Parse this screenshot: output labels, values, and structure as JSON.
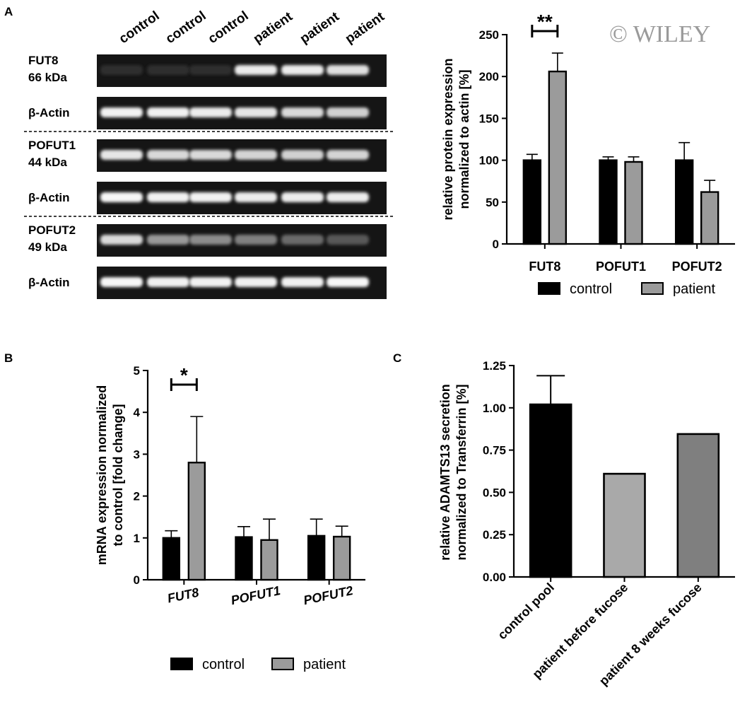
{
  "watermark": "© WILEY",
  "panels": {
    "a": "A",
    "b": "B",
    "c": "C"
  },
  "blot": {
    "lanes": [
      "control",
      "control",
      "control",
      "patient",
      "patient",
      "patient"
    ],
    "rows": [
      {
        "name": "FUT8",
        "size": "66 kDa"
      },
      {
        "name": "β-Actin",
        "size": ""
      },
      {
        "name": "POFUT1",
        "size": "44 kDa"
      },
      {
        "name": "β-Actin",
        "size": ""
      },
      {
        "name": "POFUT2",
        "size": "49 kDa"
      },
      {
        "name": "β-Actin",
        "size": ""
      }
    ],
    "band_intensity": [
      [
        0.18,
        0.18,
        0.18,
        0.92,
        0.92,
        0.88
      ],
      [
        0.95,
        0.95,
        0.93,
        0.9,
        0.85,
        0.82
      ],
      [
        0.9,
        0.85,
        0.85,
        0.83,
        0.82,
        0.83
      ],
      [
        0.97,
        0.95,
        0.95,
        0.93,
        0.93,
        0.93
      ],
      [
        0.85,
        0.6,
        0.55,
        0.5,
        0.42,
        0.35
      ],
      [
        0.97,
        0.95,
        0.95,
        0.95,
        0.95,
        0.97
      ]
    ]
  },
  "chart_data": [
    {
      "id": "A",
      "type": "bar",
      "categories": [
        "FUT8",
        "POFUT1",
        "POFUT2"
      ],
      "series": [
        {
          "name": "control",
          "values": [
            100,
            100,
            100
          ],
          "errors": [
            7,
            4,
            21
          ],
          "color": "#000000"
        },
        {
          "name": "patient",
          "values": [
            206,
            98,
            62
          ],
          "errors": [
            22,
            6,
            14
          ],
          "color": "#9b9b9b"
        }
      ],
      "ylabel": [
        "relative protein expression",
        "normalized to actin [%]"
      ],
      "ylim": [
        0,
        250
      ],
      "yticks": [
        0,
        50,
        100,
        150,
        200,
        250
      ],
      "significance": [
        {
          "category": 0,
          "label": "**"
        }
      ],
      "legend": "bottom"
    },
    {
      "id": "B",
      "type": "bar",
      "categories": [
        "FUT8",
        "POFUT1",
        "POFUT2"
      ],
      "series": [
        {
          "name": "control",
          "values": [
            1.0,
            1.02,
            1.05
          ],
          "errors": [
            0.17,
            0.25,
            0.4
          ],
          "color": "#000000"
        },
        {
          "name": "patient",
          "values": [
            2.8,
            0.95,
            1.03
          ],
          "errors": [
            1.1,
            0.5,
            0.25
          ],
          "color": "#9b9b9b"
        }
      ],
      "ylabel": [
        "mRNA expression normalized",
        "to control [fold change]"
      ],
      "ylim": [
        0,
        5
      ],
      "yticks": [
        0,
        1,
        2,
        3,
        4,
        5
      ],
      "significance": [
        {
          "category": 0,
          "label": "*"
        }
      ],
      "legend": "bottom"
    },
    {
      "id": "C",
      "type": "bar",
      "categories": [
        "control pool",
        "patient before fucose",
        "patient 8 weeks fucose"
      ],
      "values": [
        1.02,
        0.61,
        0.845
      ],
      "errors": [
        0.17,
        0,
        0
      ],
      "colors": [
        "#000000",
        "#a9a9a9",
        "#7f7f7f"
      ],
      "ylabel": [
        "relative  ADAMTS13 secretion",
        "normalized to Transferrin [%]"
      ],
      "ylim": [
        0,
        1.25
      ],
      "yticks": [
        "0.00",
        "0.25",
        "0.50",
        "0.75",
        "1.00",
        "1.25"
      ]
    }
  ]
}
